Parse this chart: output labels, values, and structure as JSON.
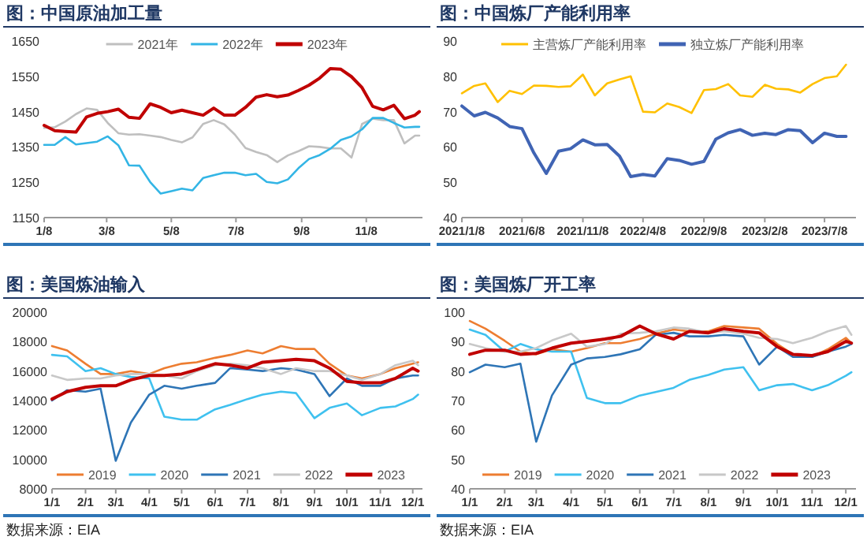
{
  "chart_data": [
    {
      "type": "line",
      "title": "图：中国原油加工量",
      "legend": "top",
      "x": [
        "--01-08",
        "--01-18",
        "--01-28",
        "--02-07",
        "--02-17",
        "--02-27",
        "--03-09",
        "--03-19",
        "--03-29",
        "--04-08",
        "--04-18",
        "--04-28",
        "--05-08",
        "--05-18",
        "--05-28",
        "--06-07",
        "--06-17",
        "--06-27",
        "--07-07",
        "--07-17",
        "--07-27",
        "--08-06",
        "--08-16",
        "--08-26",
        "--09-05",
        "--09-15",
        "--09-25",
        "--10-05",
        "--10-15",
        "--10-25",
        "--11-04",
        "--11-14",
        "--11-24",
        "--12-04",
        "--12-14",
        "--12-24",
        "--12-28"
      ],
      "xlim": [
        "--01-08",
        "--12-31"
      ],
      "xticks": [
        {
          "value": "--01-08",
          "label": "1/8"
        },
        {
          "value": "--03-08",
          "label": "3/8"
        },
        {
          "value": "--05-08",
          "label": "5/8"
        },
        {
          "value": "--07-08",
          "label": "7/8"
        },
        {
          "value": "--09-08",
          "label": "9/8"
        },
        {
          "value": "--11-08",
          "label": "11/8"
        }
      ],
      "ylim": [
        1150,
        1650
      ],
      "yticks": [
        1150,
        1250,
        1350,
        1450,
        1550,
        1650
      ],
      "series": [
        {
          "name": "2021年",
          "color": "#bfbfbf",
          "values": [
            1404,
            1406,
            1422,
            1443,
            1459,
            1455,
            1418,
            1389,
            1385,
            1386,
            1382,
            1378,
            1370,
            1363,
            1377,
            1415,
            1426,
            1414,
            1385,
            1347,
            1336,
            1327,
            1307,
            1326,
            1338,
            1352,
            1350,
            1346,
            1346,
            1320,
            1415,
            1430,
            1426,
            1426,
            1360,
            1382,
            1382
          ]
        },
        {
          "name": "2022年",
          "color": "#33b5e5",
          "values": [
            1356,
            1356,
            1378,
            1357,
            1361,
            1365,
            1380,
            1355,
            1298,
            1297,
            1251,
            1218,
            1225,
            1232,
            1227,
            1262,
            1270,
            1277,
            1277,
            1270,
            1274,
            1251,
            1247,
            1258,
            1290,
            1316,
            1327,
            1345,
            1370,
            1380,
            1400,
            1432,
            1432,
            1418,
            1405,
            1407,
            1407
          ]
        },
        {
          "name": "2023年",
          "color": "#c00000",
          "values": [
            1411,
            1396,
            1394,
            1392,
            1435,
            1445,
            1450,
            1457,
            1434,
            1431,
            1472,
            1462,
            1447,
            1454,
            1447,
            1440,
            1460,
            1440,
            1440,
            1462,
            1491,
            1498,
            1492,
            1497,
            1510,
            1525,
            1545,
            1572,
            1570,
            1549,
            1518,
            1465,
            1455,
            1468,
            1430,
            1440,
            1450
          ]
        }
      ]
    },
    {
      "type": "line",
      "title": "图：中国炼厂产能利用率",
      "legend": "top",
      "x": [
        "2021-01-08",
        "2021-02-08",
        "2021-03-08",
        "2021-04-08",
        "2021-05-08",
        "2021-06-08",
        "2021-07-08",
        "2021-08-08",
        "2021-09-08",
        "2021-10-08",
        "2021-11-08",
        "2021-12-08",
        "2022-01-08",
        "2022-02-08",
        "2022-03-08",
        "2022-04-08",
        "2022-05-08",
        "2022-06-08",
        "2022-07-08",
        "2022-08-08",
        "2022-09-08",
        "2022-10-08",
        "2022-11-08",
        "2022-12-08",
        "2023-01-08",
        "2023-02-08",
        "2023-03-08",
        "2023-04-08",
        "2023-05-08",
        "2023-06-08",
        "2023-07-08",
        "2023-08-08",
        "2023-08-31"
      ],
      "xlim": [
        "2021-01-08",
        "2023-09-25"
      ],
      "xticks": [
        {
          "value": "2021-01-08",
          "label": "2021/1/8"
        },
        {
          "value": "2021-06-08",
          "label": "2021/6/8"
        },
        {
          "value": "2021-11-08",
          "label": "2021/11/8"
        },
        {
          "value": "2022-04-08",
          "label": "2022/4/8"
        },
        {
          "value": "2022-09-08",
          "label": "2022/9/8"
        },
        {
          "value": "2023-02-08",
          "label": "2023/2/8"
        },
        {
          "value": "2023-07-08",
          "label": "2023/7/8"
        }
      ],
      "ylim": [
        40,
        90
      ],
      "yticks": [
        40,
        50,
        60,
        70,
        80,
        90
      ],
      "series": [
        {
          "name": "主营炼厂产能利用率",
          "color": "#ffc000",
          "values": [
            75.2,
            77.3,
            78.0,
            72.7,
            75.9,
            75.0,
            77.4,
            77.3,
            77.0,
            77.2,
            80.5,
            74.6,
            78.0,
            79.1,
            80.0,
            70.0,
            69.8,
            72.3,
            71.3,
            69.6,
            76.1,
            76.4,
            77.8,
            74.6,
            74.2,
            77.6,
            76.5,
            76.3,
            75.4,
            77.8,
            79.5,
            80.0,
            83.3
          ]
        },
        {
          "name": "独立炼厂产能利用率",
          "color": "#4064b4",
          "values": [
            71.6,
            68.8,
            69.8,
            68.2,
            65.8,
            65.2,
            58.3,
            52.5,
            58.8,
            59.5,
            62.0,
            60.6,
            60.7,
            57.4,
            51.6,
            52.2,
            51.8,
            56.7,
            56.2,
            55.1,
            55.9,
            62.2,
            64.0,
            64.9,
            63.3,
            63.9,
            63.5,
            64.9,
            64.6,
            61.2,
            63.9,
            63.0,
            63.0
          ]
        }
      ]
    },
    {
      "type": "line",
      "title": "图：美国炼油输入",
      "legend": "bottom",
      "annotations": [
        "数据来源：EIA"
      ],
      "x": [
        "--01-01",
        "--01-15",
        "--02-01",
        "--02-15",
        "--03-01",
        "--03-15",
        "--04-01",
        "--04-15",
        "--05-01",
        "--05-15",
        "--06-01",
        "--06-15",
        "--07-01",
        "--07-15",
        "--08-01",
        "--08-15",
        "--09-01",
        "--09-15",
        "--10-01",
        "--10-15",
        "--11-01",
        "--11-15",
        "--12-01",
        "--12-06"
      ],
      "xlim": [
        "--01-01",
        "--12-10"
      ],
      "xticks": [
        {
          "value": "--01-01",
          "label": "1/1"
        },
        {
          "value": "--02-01",
          "label": "2/1"
        },
        {
          "value": "--03-01",
          "label": "3/1"
        },
        {
          "value": "--04-01",
          "label": "4/1"
        },
        {
          "value": "--05-01",
          "label": "5/1"
        },
        {
          "value": "--06-01",
          "label": "6/1"
        },
        {
          "value": "--07-01",
          "label": "7/1"
        },
        {
          "value": "--08-01",
          "label": "8/1"
        },
        {
          "value": "--09-01",
          "label": "9/1"
        },
        {
          "value": "--10-01",
          "label": "10/1"
        },
        {
          "value": "--11-01",
          "label": "11/1"
        },
        {
          "value": "--12-01",
          "label": "12/1"
        }
      ],
      "ylim": [
        8000,
        20000
      ],
      "yticks": [
        8000,
        10000,
        12000,
        14000,
        16000,
        18000,
        20000
      ],
      "series": [
        {
          "name": "2019",
          "color": "#ed7d31",
          "values": [
            17700,
            17400,
            16500,
            15800,
            15800,
            16000,
            15800,
            16200,
            16500,
            16600,
            16900,
            17100,
            17400,
            17200,
            17700,
            17500,
            17500,
            16500,
            15700,
            15500,
            15800,
            16200,
            16500,
            16600
          ]
        },
        {
          "name": "2020",
          "color": "#3fc1ef",
          "values": [
            17100,
            17000,
            16000,
            16200,
            15800,
            15600,
            15500,
            12900,
            12700,
            12700,
            13400,
            13700,
            14100,
            14400,
            14600,
            14500,
            12800,
            13500,
            13800,
            13000,
            13500,
            13600,
            14100,
            14400
          ]
        },
        {
          "name": "2021",
          "color": "#2e75b6",
          "values": [
            14000,
            14700,
            14600,
            14800,
            9900,
            12500,
            14400,
            15000,
            14800,
            15000,
            15200,
            16200,
            16100,
            16000,
            16200,
            16100,
            15800,
            14300,
            15500,
            15000,
            15000,
            15500,
            15700,
            15700
          ]
        },
        {
          "name": "2022",
          "color": "#c8c8c8",
          "values": [
            15700,
            15400,
            15500,
            15500,
            15700,
            15800,
            15800,
            15700,
            15500,
            16000,
            16400,
            16500,
            16400,
            16200,
            15800,
            16200,
            16000,
            16000,
            15700,
            15400,
            15800,
            16400,
            16700,
            16400
          ]
        },
        {
          "name": "2023",
          "color": "#c00000",
          "values": [
            14100,
            14600,
            14900,
            15000,
            15000,
            15400,
            15700,
            15700,
            15800,
            16100,
            16500,
            16400,
            16200,
            16600,
            16700,
            16800,
            16700,
            16200,
            15300,
            15200,
            15200,
            15500,
            16200,
            16000
          ]
        }
      ]
    },
    {
      "type": "line",
      "title": "图：美国炼厂开工率",
      "legend": "bottom",
      "annotations": [
        "数据来源：EIA"
      ],
      "x": [
        "--01-01",
        "--01-15",
        "--02-01",
        "--02-15",
        "--03-01",
        "--03-15",
        "--04-01",
        "--04-15",
        "--05-01",
        "--05-15",
        "--06-01",
        "--06-15",
        "--07-01",
        "--07-15",
        "--08-01",
        "--08-15",
        "--09-01",
        "--09-15",
        "--10-01",
        "--10-15",
        "--11-01",
        "--11-15",
        "--12-01",
        "--12-06"
      ],
      "xlim": [
        "--01-01",
        "--12-10"
      ],
      "xticks": [
        {
          "value": "--01-01",
          "label": "1/1"
        },
        {
          "value": "--02-01",
          "label": "2/1"
        },
        {
          "value": "--03-01",
          "label": "3/1"
        },
        {
          "value": "--04-01",
          "label": "4/1"
        },
        {
          "value": "--05-01",
          "label": "5/1"
        },
        {
          "value": "--06-01",
          "label": "6/1"
        },
        {
          "value": "--07-01",
          "label": "7/1"
        },
        {
          "value": "--08-01",
          "label": "8/1"
        },
        {
          "value": "--09-01",
          "label": "9/1"
        },
        {
          "value": "--10-01",
          "label": "10/1"
        },
        {
          "value": "--11-01",
          "label": "11/1"
        },
        {
          "value": "--12-01",
          "label": "12/1"
        }
      ],
      "ylim": [
        40,
        100
      ],
      "yticks": [
        40,
        50,
        60,
        70,
        80,
        90,
        100
      ],
      "series": [
        {
          "name": "2019",
          "color": "#ed7d31",
          "values": [
            97.0,
            94.4,
            90.3,
            86.6,
            85.7,
            87.4,
            86.6,
            87.8,
            89.5,
            89.5,
            90.9,
            92.7,
            94.1,
            93.5,
            93.5,
            95.3,
            94.8,
            94.4,
            89.2,
            85.7,
            84.8,
            87.4,
            91.3,
            89.5
          ]
        },
        {
          "name": "2020",
          "color": "#3fc1ef",
          "values": [
            94.1,
            92.3,
            86.6,
            89.2,
            87.4,
            86.6,
            86.6,
            70.9,
            69.1,
            69.1,
            71.7,
            72.9,
            74.3,
            77.0,
            78.7,
            80.5,
            81.3,
            73.5,
            75.2,
            75.6,
            73.5,
            75.2,
            78.4,
            79.6
          ]
        },
        {
          "name": "2021",
          "color": "#2e75b6",
          "values": [
            79.6,
            82.2,
            81.3,
            82.5,
            56.0,
            71.7,
            82.2,
            84.3,
            84.8,
            85.7,
            87.4,
            92.3,
            93.0,
            91.8,
            91.8,
            92.3,
            91.8,
            82.2,
            88.3,
            84.8,
            84.8,
            86.6,
            88.3,
            89.2
          ]
        },
        {
          "name": "2022",
          "color": "#c8c8c8",
          "values": [
            89.2,
            87.8,
            86.6,
            86.6,
            87.8,
            90.4,
            92.7,
            88.3,
            89.2,
            92.7,
            93.0,
            93.5,
            94.8,
            94.4,
            93.0,
            93.5,
            92.7,
            91.3,
            90.9,
            89.5,
            91.3,
            93.5,
            95.3,
            92.3
          ]
        },
        {
          "name": "2023",
          "color": "#c00000",
          "values": [
            85.7,
            87.1,
            87.1,
            85.7,
            86.0,
            87.8,
            89.5,
            90.1,
            90.9,
            91.8,
            95.3,
            92.7,
            90.9,
            93.5,
            93.0,
            94.4,
            93.5,
            93.0,
            88.3,
            85.7,
            85.3,
            86.6,
            90.1,
            89.5
          ]
        }
      ]
    }
  ]
}
